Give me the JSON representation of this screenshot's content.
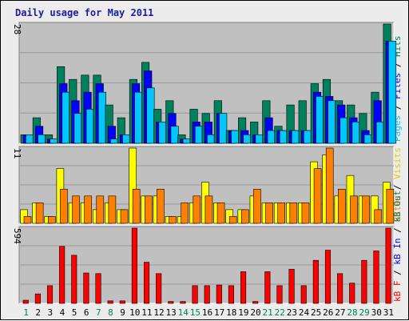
{
  "title": "Daily usage for May 2011",
  "colors": {
    "panel_bg": "#c0c0c0",
    "frame_bg": "#ececec",
    "hits": "#00805c",
    "files": "#0000ff",
    "pages": "#00c8ff",
    "visits": "#ffff00",
    "sites": "#ff8000",
    "kb_f": "#ff0000",
    "kb_in": "#0000ff",
    "kb_out": "#00805c",
    "weekend_day": "#00805c",
    "weekday_day": "#000000",
    "title": "#1c1c9e"
  },
  "chart_data": [
    {
      "type": "bar",
      "panel": "top",
      "y_max_label": "28",
      "ylim": [
        0,
        28
      ],
      "axis_label_parts": [
        {
          "text": "Pages",
          "color": "#00c8ff"
        },
        {
          "text": " / ",
          "color": "#000000"
        },
        {
          "text": "Files",
          "color": "#0000ff"
        },
        {
          "text": " / ",
          "color": "#000000"
        },
        {
          "text": "Hits",
          "color": "#00805c"
        }
      ],
      "categories": [
        "1",
        "2",
        "3",
        "4",
        "5",
        "6",
        "7",
        "8",
        "9",
        "10",
        "11",
        "12",
        "13",
        "14",
        "15",
        "16",
        "17",
        "18",
        "19",
        "20",
        "21",
        "22",
        "23",
        "24",
        "25",
        "26",
        "27",
        "28",
        "29",
        "30",
        "31"
      ],
      "series": [
        {
          "name": "Hits",
          "color": "#00805c",
          "values": [
            2,
            6,
            2,
            18,
            15,
            16,
            16,
            9,
            6,
            15,
            19,
            8,
            10,
            2,
            8,
            7,
            10,
            3,
            6,
            5,
            10,
            4,
            9,
            10,
            14,
            15,
            10,
            9,
            7,
            12,
            28
          ]
        },
        {
          "name": "Files",
          "color": "#0000ff",
          "values": [
            2,
            4,
            1,
            14,
            10,
            12,
            14,
            4,
            2,
            14,
            17,
            5,
            7,
            1,
            5,
            5,
            7,
            3,
            3,
            2,
            6,
            3,
            3,
            3,
            12,
            11,
            9,
            6,
            3,
            10,
            24
          ]
        },
        {
          "name": "Pages",
          "color": "#00c8ff",
          "values": [
            2,
            2,
            1,
            12,
            7,
            8,
            12,
            1,
            2,
            12,
            13,
            5,
            4,
            1,
            4,
            2,
            7,
            3,
            2,
            2,
            3,
            3,
            3,
            3,
            11,
            10,
            6,
            5,
            2,
            5,
            24
          ]
        }
      ]
    },
    {
      "type": "bar",
      "panel": "middle",
      "y_max_label": "11",
      "ylim": [
        0,
        11
      ],
      "axis_label_parts": [
        {
          "text": "Sites",
          "color": "#ff8000"
        },
        {
          "text": " / ",
          "color": "#000000"
        },
        {
          "text": "Visits",
          "color": "#e8c800"
        }
      ],
      "categories": [
        "1",
        "2",
        "3",
        "4",
        "5",
        "6",
        "7",
        "8",
        "9",
        "10",
        "11",
        "12",
        "13",
        "14",
        "15",
        "16",
        "17",
        "18",
        "19",
        "20",
        "21",
        "22",
        "23",
        "24",
        "25",
        "26",
        "27",
        "28",
        "29",
        "30",
        "31"
      ],
      "series": [
        {
          "name": "Visits",
          "color": "#ffff00",
          "values": [
            2,
            3,
            1,
            8,
            3,
            3,
            2,
            3,
            2,
            11,
            4,
            4,
            1,
            1,
            3,
            6,
            3,
            2,
            2,
            4,
            3,
            3,
            3,
            3,
            9,
            10,
            4,
            7,
            4,
            4,
            6
          ]
        },
        {
          "name": "Sites",
          "color": "#ff8000",
          "values": [
            1,
            3,
            1,
            5,
            4,
            4,
            4,
            4,
            2,
            5,
            4,
            5,
            1,
            3,
            4,
            4,
            3,
            1,
            2,
            5,
            3,
            3,
            3,
            3,
            8,
            11,
            5,
            4,
            4,
            2,
            5
          ]
        }
      ]
    },
    {
      "type": "bar",
      "panel": "bottom",
      "y_max_label": "594",
      "ylim": [
        0,
        594
      ],
      "axis_label_parts": [
        {
          "text": "kB F",
          "color": "#ff0000"
        },
        {
          "text": " / ",
          "color": "#000000"
        },
        {
          "text": "kB In",
          "color": "#0000ff"
        },
        {
          "text": " / ",
          "color": "#000000"
        },
        {
          "text": "kB Out",
          "color": "#00805c"
        }
      ],
      "categories": [
        "1",
        "2",
        "3",
        "4",
        "5",
        "6",
        "7",
        "8",
        "9",
        "10",
        "11",
        "12",
        "13",
        "14",
        "15",
        "16",
        "17",
        "18",
        "19",
        "20",
        "21",
        "22",
        "23",
        "24",
        "25",
        "26",
        "27",
        "28",
        "29",
        "30",
        "31"
      ],
      "series": [
        {
          "name": "kB F",
          "color": "#ff0000",
          "values": [
            25,
            75,
            140,
            450,
            380,
            240,
            235,
            20,
            20,
            594,
            325,
            235,
            15,
            15,
            140,
            140,
            145,
            140,
            250,
            15,
            250,
            140,
            270,
            140,
            340,
            420,
            235,
            160,
            340,
            415,
            594
          ]
        }
      ]
    }
  ],
  "day_labels": [
    {
      "text": "1",
      "weekend": true
    },
    {
      "text": "2",
      "weekend": false
    },
    {
      "text": "3",
      "weekend": false
    },
    {
      "text": "4",
      "weekend": false
    },
    {
      "text": "5",
      "weekend": false
    },
    {
      "text": "6",
      "weekend": false
    },
    {
      "text": "7",
      "weekend": true
    },
    {
      "text": "8",
      "weekend": true
    },
    {
      "text": "9",
      "weekend": false
    },
    {
      "text": "10",
      "weekend": false
    },
    {
      "text": "11",
      "weekend": false
    },
    {
      "text": "12",
      "weekend": false
    },
    {
      "text": "13",
      "weekend": false
    },
    {
      "text": "14",
      "weekend": true
    },
    {
      "text": "15",
      "weekend": true
    },
    {
      "text": "16",
      "weekend": false
    },
    {
      "text": "17",
      "weekend": false
    },
    {
      "text": "18",
      "weekend": false
    },
    {
      "text": "19",
      "weekend": false
    },
    {
      "text": "20",
      "weekend": false
    },
    {
      "text": "21",
      "weekend": true
    },
    {
      "text": "22",
      "weekend": true
    },
    {
      "text": "23",
      "weekend": false
    },
    {
      "text": "24",
      "weekend": false
    },
    {
      "text": "25",
      "weekend": false
    },
    {
      "text": "26",
      "weekend": false
    },
    {
      "text": "27",
      "weekend": false
    },
    {
      "text": "28",
      "weekend": true
    },
    {
      "text": "29",
      "weekend": true
    },
    {
      "text": "30",
      "weekend": false
    },
    {
      "text": "31",
      "weekend": false
    }
  ]
}
